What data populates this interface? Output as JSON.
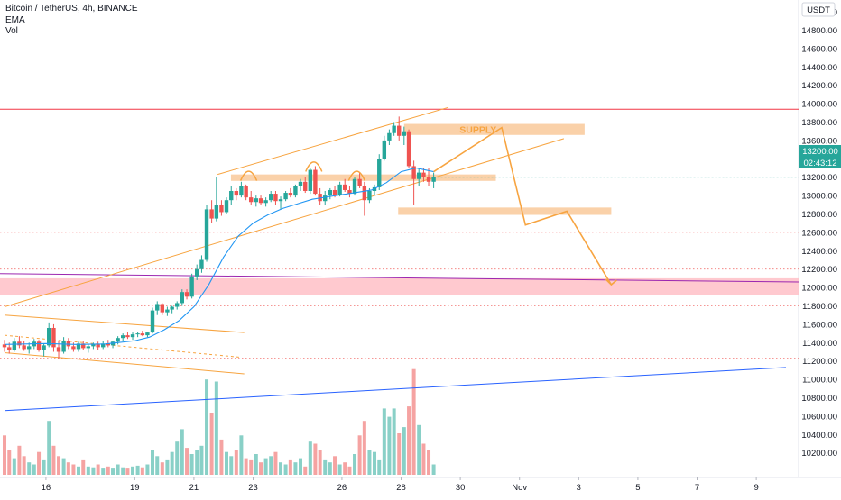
{
  "header": {
    "symbol_line": "Bitcoin / TetherUS, 4h, BINANCE",
    "indicator_1": "EMA",
    "indicator_2": "Vol",
    "currency_button": "USDT"
  },
  "price_tags": {
    "last_price": "13200.00",
    "countdown": "02:43:12"
  },
  "annotations": {
    "supply_label": "SUPPLY"
  },
  "colors": {
    "up": "#26a69a",
    "down": "#ef5350",
    "vol_up": "#89d0c7",
    "vol_down": "#f5a3a2",
    "ema": "#2196f3",
    "trendline": "#f7a440",
    "zone_orange": "#f9c99a",
    "zone_red": "#ffc0c7",
    "resistance": "#f23645",
    "purple_line": "#9c27b0",
    "blue_trendline": "#2962ff"
  },
  "chart_data": {
    "type": "candlestick",
    "title": "Bitcoin / TetherUS, 4h, BINANCE",
    "x_tick_labels": [
      "16",
      "19",
      "21",
      "23",
      "26",
      "28",
      "30",
      "Nov",
      "3",
      "5",
      "7",
      "9"
    ],
    "x_tick_days": [
      16,
      19,
      21,
      23,
      26,
      28,
      30,
      32,
      34,
      36,
      38,
      40
    ],
    "x_range_days": [
      14.6,
      41.0
    ],
    "y_tick_labels": [
      "10200.00",
      "10400.00",
      "10600.00",
      "10800.00",
      "11000.00",
      "11200.00",
      "11400.00",
      "11600.00",
      "11800.00",
      "12000.00",
      "12200.00",
      "12400.00",
      "12600.00",
      "12800.00",
      "13000.00",
      "13200.00",
      "13400.00",
      "13600.00",
      "13800.00",
      "14000.00",
      "14200.00",
      "14400.00",
      "14600.00",
      "14800.00",
      "15000.00"
    ],
    "y_range": [
      10050,
      15050
    ],
    "candles": [
      [
        14.6,
        11380,
        11430,
        11300,
        11350
      ],
      [
        14.76,
        11350,
        11400,
        11280,
        11320
      ],
      [
        14.93,
        11320,
        11450,
        11300,
        11410
      ],
      [
        15.1,
        11410,
        11470,
        11340,
        11370
      ],
      [
        15.26,
        11370,
        11420,
        11310,
        11330
      ],
      [
        15.43,
        11330,
        11400,
        11280,
        11360
      ],
      [
        15.6,
        11360,
        11440,
        11330,
        11410
      ],
      [
        15.76,
        11410,
        11430,
        11300,
        11320
      ],
      [
        15.93,
        11320,
        11390,
        11250,
        11370
      ],
      [
        16.1,
        11370,
        11620,
        11350,
        11560
      ],
      [
        16.26,
        11560,
        11600,
        11300,
        11350
      ],
      [
        16.43,
        11350,
        11420,
        11220,
        11300
      ],
      [
        16.6,
        11300,
        11460,
        11280,
        11420
      ],
      [
        16.76,
        11420,
        11450,
        11330,
        11360
      ],
      [
        16.93,
        11360,
        11400,
        11300,
        11330
      ],
      [
        17.1,
        11330,
        11410,
        11300,
        11390
      ],
      [
        17.26,
        11390,
        11420,
        11320,
        11340
      ],
      [
        17.43,
        11340,
        11380,
        11290,
        11360
      ],
      [
        17.6,
        11360,
        11400,
        11330,
        11380
      ],
      [
        17.76,
        11380,
        11410,
        11320,
        11350
      ],
      [
        17.93,
        11350,
        11420,
        11330,
        11390
      ],
      [
        18.1,
        11390,
        11430,
        11350,
        11370
      ],
      [
        18.26,
        11370,
        11420,
        11340,
        11410
      ],
      [
        18.43,
        11410,
        11470,
        11380,
        11450
      ],
      [
        18.6,
        11450,
        11500,
        11420,
        11480
      ],
      [
        18.76,
        11480,
        11520,
        11440,
        11460
      ],
      [
        18.93,
        11460,
        11510,
        11430,
        11490
      ],
      [
        19.1,
        11490,
        11520,
        11460,
        11500
      ],
      [
        19.26,
        11500,
        11530,
        11470,
        11480
      ],
      [
        19.43,
        11480,
        11520,
        11460,
        11510
      ],
      [
        19.6,
        11510,
        11780,
        11500,
        11750
      ],
      [
        19.76,
        11750,
        11850,
        11700,
        11820
      ],
      [
        19.93,
        11820,
        11830,
        11700,
        11730
      ],
      [
        20.1,
        11730,
        11790,
        11690,
        11760
      ],
      [
        20.26,
        11760,
        11800,
        11720,
        11790
      ],
      [
        20.43,
        11790,
        11850,
        11760,
        11830
      ],
      [
        20.6,
        11830,
        11980,
        11800,
        11950
      ],
      [
        20.76,
        11950,
        11980,
        11870,
        11900
      ],
      [
        20.93,
        11900,
        12150,
        11880,
        12120
      ],
      [
        21.1,
        12120,
        12250,
        12080,
        12200
      ],
      [
        21.26,
        12200,
        12350,
        12160,
        12300
      ],
      [
        21.43,
        12300,
        12900,
        12280,
        12850
      ],
      [
        21.6,
        12850,
        12950,
        12700,
        12750
      ],
      [
        21.76,
        12750,
        13200,
        12720,
        12900
      ],
      [
        21.93,
        12900,
        12950,
        12780,
        12820
      ],
      [
        22.1,
        12820,
        12980,
        12800,
        12950
      ],
      [
        22.26,
        12950,
        13100,
        12900,
        13050
      ],
      [
        22.43,
        13050,
        13080,
        12950,
        13000
      ],
      [
        22.6,
        13000,
        13150,
        12980,
        13100
      ],
      [
        22.76,
        13100,
        13120,
        12950,
        12980
      ],
      [
        22.93,
        12980,
        13050,
        12900,
        12930
      ],
      [
        23.1,
        12930,
        13000,
        12880,
        12970
      ],
      [
        23.26,
        12970,
        13000,
        12900,
        12920
      ],
      [
        23.43,
        12920,
        12980,
        12880,
        12950
      ],
      [
        23.6,
        12950,
        13050,
        12930,
        13020
      ],
      [
        23.76,
        13020,
        13050,
        12900,
        12940
      ],
      [
        23.93,
        12940,
        12990,
        12850,
        12960
      ],
      [
        24.1,
        12960,
        13050,
        12940,
        13030
      ],
      [
        24.26,
        13030,
        13080,
        12980,
        13000
      ],
      [
        24.43,
        13000,
        13120,
        12980,
        13100
      ],
      [
        24.6,
        13100,
        13180,
        13050,
        13150
      ],
      [
        24.76,
        13150,
        13200,
        13030,
        13050
      ],
      [
        24.93,
        13050,
        13300,
        13020,
        13280
      ],
      [
        25.1,
        13280,
        13320,
        13000,
        13020
      ],
      [
        25.26,
        13020,
        13080,
        12900,
        12940
      ],
      [
        25.43,
        12940,
        13050,
        12900,
        13000
      ],
      [
        25.6,
        13000,
        13080,
        12960,
        13060
      ],
      [
        25.76,
        13060,
        13100,
        12980,
        13010
      ],
      [
        25.93,
        13010,
        13150,
        12990,
        13120
      ],
      [
        26.1,
        13120,
        13180,
        13040,
        13060
      ],
      [
        26.26,
        13060,
        13100,
        12980,
        13020
      ],
      [
        26.43,
        13020,
        13200,
        13000,
        13180
      ],
      [
        26.6,
        13180,
        13250,
        13080,
        13100
      ],
      [
        26.76,
        13100,
        13150,
        12780,
        12950
      ],
      [
        26.93,
        12950,
        13080,
        12920,
        13050
      ],
      [
        27.1,
        13050,
        13120,
        13000,
        13090
      ],
      [
        27.26,
        13090,
        13450,
        13060,
        13400
      ],
      [
        27.43,
        13400,
        13650,
        13380,
        13600
      ],
      [
        27.6,
        13600,
        13720,
        13550,
        13680
      ],
      [
        27.76,
        13680,
        13800,
        13650,
        13760
      ],
      [
        27.93,
        13760,
        13860,
        13600,
        13650
      ],
      [
        28.1,
        13650,
        13750,
        13550,
        13700
      ],
      [
        28.26,
        13700,
        13720,
        13300,
        13320
      ],
      [
        28.43,
        13320,
        13380,
        12900,
        13180
      ],
      [
        28.6,
        13180,
        13300,
        13100,
        13250
      ],
      [
        28.76,
        13250,
        13300,
        13150,
        13200
      ],
      [
        28.93,
        13200,
        13300,
        13100,
        13150
      ],
      [
        29.1,
        13150,
        13250,
        13080,
        13200
      ]
    ],
    "ema": [
      [
        14.6,
        11380
      ],
      [
        16.0,
        11390
      ],
      [
        17.0,
        11380
      ],
      [
        18.0,
        11385
      ],
      [
        19.0,
        11420
      ],
      [
        19.5,
        11460
      ],
      [
        20.0,
        11540
      ],
      [
        20.5,
        11640
      ],
      [
        21.0,
        11790
      ],
      [
        21.5,
        12030
      ],
      [
        22.0,
        12330
      ],
      [
        22.5,
        12560
      ],
      [
        23.0,
        12700
      ],
      [
        23.5,
        12790
      ],
      [
        24.0,
        12860
      ],
      [
        24.5,
        12910
      ],
      [
        25.0,
        12960
      ],
      [
        25.5,
        12985
      ],
      [
        26.0,
        13010
      ],
      [
        26.5,
        13035
      ],
      [
        27.0,
        13060
      ],
      [
        27.5,
        13140
      ],
      [
        28.0,
        13260
      ],
      [
        28.5,
        13300
      ],
      [
        29.1,
        13260
      ]
    ],
    "volume": [
      [
        14.6,
        95
      ],
      [
        14.76,
        60
      ],
      [
        14.93,
        40
      ],
      [
        15.1,
        70
      ],
      [
        15.26,
        45
      ],
      [
        15.43,
        30
      ],
      [
        15.6,
        25
      ],
      [
        15.76,
        55
      ],
      [
        15.93,
        35
      ],
      [
        16.1,
        130
      ],
      [
        16.26,
        70
      ],
      [
        16.43,
        45
      ],
      [
        16.6,
        40
      ],
      [
        16.76,
        30
      ],
      [
        16.93,
        25
      ],
      [
        17.1,
        20
      ],
      [
        17.26,
        35
      ],
      [
        17.43,
        20
      ],
      [
        17.6,
        18
      ],
      [
        17.76,
        25
      ],
      [
        17.93,
        15
      ],
      [
        18.1,
        20
      ],
      [
        18.26,
        15
      ],
      [
        18.43,
        25
      ],
      [
        18.6,
        18
      ],
      [
        18.76,
        15
      ],
      [
        18.93,
        20
      ],
      [
        19.1,
        22
      ],
      [
        19.26,
        18
      ],
      [
        19.43,
        25
      ],
      [
        19.6,
        60
      ],
      [
        19.76,
        45
      ],
      [
        19.93,
        30
      ],
      [
        20.1,
        35
      ],
      [
        20.26,
        55
      ],
      [
        20.43,
        80
      ],
      [
        20.6,
        110
      ],
      [
        20.76,
        65
      ],
      [
        20.93,
        50
      ],
      [
        21.1,
        60
      ],
      [
        21.26,
        70
      ],
      [
        21.43,
        230
      ],
      [
        21.6,
        150
      ],
      [
        21.76,
        225
      ],
      [
        21.93,
        85
      ],
      [
        22.1,
        55
      ],
      [
        22.26,
        45
      ],
      [
        22.43,
        60
      ],
      [
        22.6,
        95
      ],
      [
        22.76,
        40
      ],
      [
        22.93,
        35
      ],
      [
        23.1,
        50
      ],
      [
        23.26,
        30
      ],
      [
        23.43,
        40
      ],
      [
        23.6,
        45
      ],
      [
        23.76,
        55
      ],
      [
        23.93,
        30
      ],
      [
        24.1,
        25
      ],
      [
        24.26,
        35
      ],
      [
        24.43,
        30
      ],
      [
        24.6,
        40
      ],
      [
        24.76,
        20
      ],
      [
        24.93,
        80
      ],
      [
        25.1,
        75
      ],
      [
        25.26,
        60
      ],
      [
        25.43,
        35
      ],
      [
        25.6,
        30
      ],
      [
        25.76,
        45
      ],
      [
        25.93,
        25
      ],
      [
        26.1,
        30
      ],
      [
        26.26,
        20
      ],
      [
        26.43,
        50
      ],
      [
        26.6,
        95
      ],
      [
        26.76,
        130
      ],
      [
        26.93,
        60
      ],
      [
        27.1,
        55
      ],
      [
        27.26,
        35
      ],
      [
        27.43,
        160
      ],
      [
        27.6,
        140
      ],
      [
        27.76,
        160
      ],
      [
        27.93,
        100
      ],
      [
        28.1,
        115
      ],
      [
        28.26,
        165
      ],
      [
        28.43,
        255
      ],
      [
        28.6,
        120
      ],
      [
        28.76,
        75
      ],
      [
        28.93,
        60
      ],
      [
        29.1,
        25
      ]
    ],
    "series": [
      {
        "values": "candles"
      },
      {
        "name": "EMA",
        "values": "ema"
      },
      {
        "name": "Vol",
        "values": "volume"
      }
    ]
  }
}
